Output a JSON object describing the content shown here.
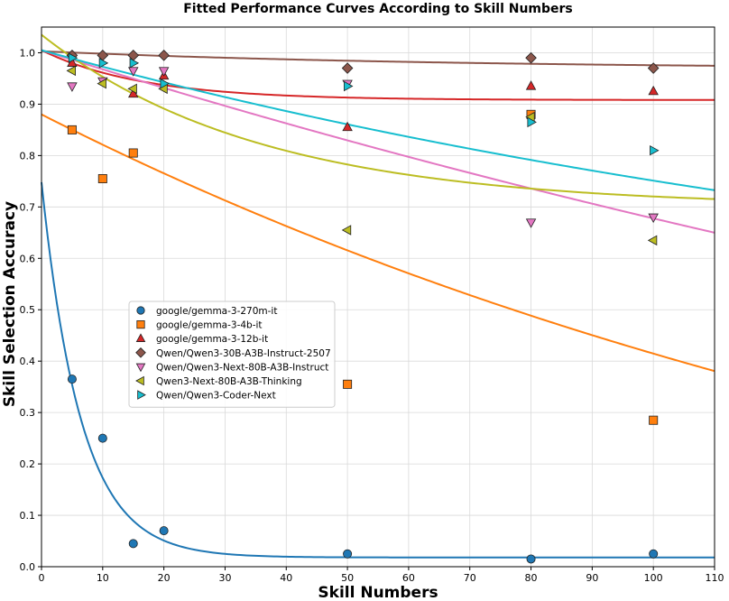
{
  "chart_data": {
    "type": "scatter",
    "title": "Fitted Performance Curves According to Skill Numbers",
    "xlabel": "Skill Numbers",
    "ylabel": "Skill Selection Accuracy",
    "xlim": [
      0,
      110
    ],
    "ylim": [
      0,
      1.05
    ],
    "xticks": [
      "0",
      "10",
      "20",
      "30",
      "40",
      "50",
      "60",
      "70",
      "80",
      "90",
      "100",
      "110"
    ],
    "yticks": [
      "0.0",
      "0.1",
      "0.2",
      "0.3",
      "0.4",
      "0.5",
      "0.6",
      "0.7",
      "0.8",
      "0.9",
      "1.0"
    ],
    "grid": true,
    "legend_position": "center-left",
    "series": [
      {
        "name": "google/gemma-3-270m-it",
        "color": "#1f77b4",
        "marker": "circle",
        "x": [
          5,
          10,
          15,
          20,
          50,
          80,
          100
        ],
        "y": [
          0.365,
          0.25,
          0.045,
          0.07,
          0.025,
          0.015,
          0.025
        ],
        "fit": {
          "a": 0.73,
          "b": 0.0,
          "k": 0.155,
          "c": 0.018
        }
      },
      {
        "name": "google/gemma-3-4b-it",
        "color": "#ff7f0e",
        "marker": "square",
        "x": [
          5,
          10,
          15,
          50,
          80,
          100
        ],
        "y": [
          0.85,
          0.755,
          0.805,
          0.355,
          0.88,
          0.285
        ],
        "fit": {
          "a": 1.1,
          "b": 0.0,
          "k": 0.0055,
          "c": -0.22
        }
      },
      {
        "name": "google/gemma-3-12b-it",
        "color": "#d62728",
        "marker": "triangle-up",
        "x": [
          5,
          15,
          20,
          50,
          80,
          100
        ],
        "y": [
          0.98,
          0.92,
          0.955,
          0.855,
          0.935,
          0.925
        ],
        "fit": {
          "a": 0.097,
          "b": 0.0,
          "k": 0.06,
          "c": 0.908
        }
      },
      {
        "name": "Qwen/Qwen3-30B-A3B-Instruct-2507",
        "color": "#8c564b",
        "marker": "diamond",
        "x": [
          5,
          10,
          15,
          20,
          50,
          80,
          100
        ],
        "y": [
          0.995,
          0.995,
          0.995,
          0.995,
          0.97,
          0.99,
          0.97
        ],
        "fit": {
          "a": 0.035,
          "b": 0.0,
          "k": 0.015,
          "c": 0.968
        }
      },
      {
        "name": "Qwen/Qwen3-Next-80B-A3B-Instruct",
        "color": "#e377c2",
        "marker": "triangle-down",
        "x": [
          5,
          10,
          15,
          20,
          50,
          80,
          100
        ],
        "y": [
          0.935,
          0.945,
          0.965,
          0.965,
          0.94,
          0.67,
          0.68
        ],
        "fit": {
          "a": 1.3,
          "b": 0.0,
          "k": 0.0029,
          "c": -0.295
        }
      },
      {
        "name": "Qwen3-Next-80B-A3B-Thinking",
        "color": "#bcbd22",
        "marker": "triangle-left",
        "x": [
          5,
          10,
          15,
          20,
          50,
          80,
          100
        ],
        "y": [
          0.965,
          0.94,
          0.93,
          0.93,
          0.655,
          0.875,
          0.635
        ],
        "fit": {
          "a": 0.335,
          "b": 0.0,
          "k": 0.028,
          "c": 0.7
        }
      },
      {
        "name": "Qwen/Qwen3-Coder-Next",
        "color": "#17becf",
        "marker": "triangle-right",
        "x": [
          5,
          10,
          15,
          20,
          50,
          80,
          100
        ],
        "y": [
          0.99,
          0.98,
          0.98,
          0.94,
          0.935,
          0.865,
          0.81
        ],
        "fit": {
          "a": 0.6,
          "b": 0.0,
          "k": 0.0055,
          "c": 0.405
        }
      }
    ]
  }
}
